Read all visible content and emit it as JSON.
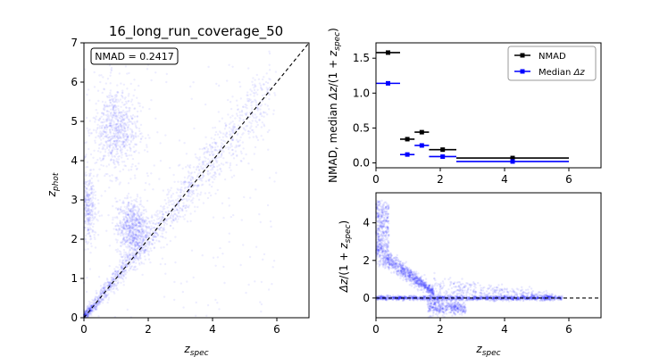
{
  "colors": {
    "scatter": "#0000ff",
    "nmad": "#000000",
    "median": "#0000ff",
    "frame": "#000000",
    "reference_line": "#000000"
  },
  "chart_data": [
    {
      "id": "scatter",
      "type": "scatter",
      "title": "16_long_run_coverage_50",
      "xlabel": "z_spec",
      "ylabel": "z_phot",
      "xlim": [
        0,
        7
      ],
      "ylim": [
        0,
        7
      ],
      "xticks": [
        0,
        2,
        4,
        6
      ],
      "yticks": [
        0,
        1,
        2,
        3,
        4,
        5,
        6,
        7
      ],
      "grid": false,
      "annotation": "NMAD = 0.2417",
      "reference_line": "y = x",
      "density_regions": [
        {
          "description": "main diagonal locus",
          "x_range": [
            0.0,
            5.8
          ],
          "y_equals_x": true,
          "relative_density": 1.0
        },
        {
          "description": "outlier cloud",
          "center": [
            1.0,
            4.8
          ],
          "spread": [
            0.35,
            0.55
          ],
          "relative_density": 0.45
        },
        {
          "description": "outlier cloud",
          "center": [
            1.5,
            2.3
          ],
          "spread": [
            0.25,
            0.35
          ],
          "relative_density": 0.45
        },
        {
          "description": "outlier cloud",
          "center": [
            0.1,
            2.8
          ],
          "spread": [
            0.15,
            0.5
          ],
          "relative_density": 0.25
        },
        {
          "description": "diffuse background",
          "x_range": [
            0,
            6
          ],
          "y_range": [
            0,
            6.5
          ],
          "relative_density": 0.15
        }
      ]
    },
    {
      "id": "binned_stats",
      "type": "scatter",
      "xlabel": "",
      "ylabel": "NMAD, median Δz/(1 + z_spec)",
      "xlim": [
        0,
        7
      ],
      "ylim": [
        -0.07,
        1.72
      ],
      "xticks": [
        0,
        2,
        4,
        6
      ],
      "yticks": [
        0.0,
        0.5,
        1.0,
        1.5
      ],
      "legend_position": "top-right",
      "series": [
        {
          "name": "NMAD",
          "bins": [
            [
              0,
              0.75
            ],
            [
              0.75,
              1.2
            ],
            [
              1.2,
              1.65
            ],
            [
              1.65,
              2.5
            ],
            [
              2.5,
              6.0
            ]
          ],
          "values": [
            1.58,
            0.34,
            0.44,
            0.19,
            0.07
          ]
        },
        {
          "name": "Median Δz",
          "bins": [
            [
              0,
              0.75
            ],
            [
              0.75,
              1.2
            ],
            [
              1.2,
              1.65
            ],
            [
              1.65,
              2.5
            ],
            [
              2.5,
              6.0
            ]
          ],
          "values": [
            1.14,
            0.12,
            0.25,
            0.09,
            0.02
          ]
        }
      ]
    },
    {
      "id": "residuals",
      "type": "scatter",
      "xlabel": "z_spec",
      "ylabel": "Δz/(1 + z_spec)",
      "xlim": [
        0,
        7
      ],
      "ylim": [
        -1.05,
        5.6
      ],
      "xticks": [
        0,
        2,
        4,
        6
      ],
      "yticks": [
        0,
        2,
        4
      ],
      "reference_line": "y = 0",
      "density_regions": [
        {
          "description": "zero-residual band",
          "x_range": [
            0,
            5.8
          ],
          "y": 0,
          "relative_density": 1.0
        },
        {
          "description": "decaying positive residuals",
          "x_range": [
            0,
            1.8
          ],
          "y_from": 2.5,
          "y_to": 0.3,
          "relative_density": 0.6
        },
        {
          "description": "high-residual tail near z_spec=0",
          "x_range": [
            0,
            0.4
          ],
          "y_range": [
            2.5,
            5.2
          ],
          "relative_density": 0.25
        },
        {
          "description": "positive tail",
          "x_range": [
            1.8,
            5.5
          ],
          "y_from": 0.6,
          "y_to": 0.05,
          "relative_density": 0.25
        },
        {
          "description": "negative residual streak",
          "x_range": [
            1.6,
            2.8
          ],
          "y_from": -0.35,
          "y_to": -0.6,
          "relative_density": 0.3
        }
      ]
    }
  ]
}
